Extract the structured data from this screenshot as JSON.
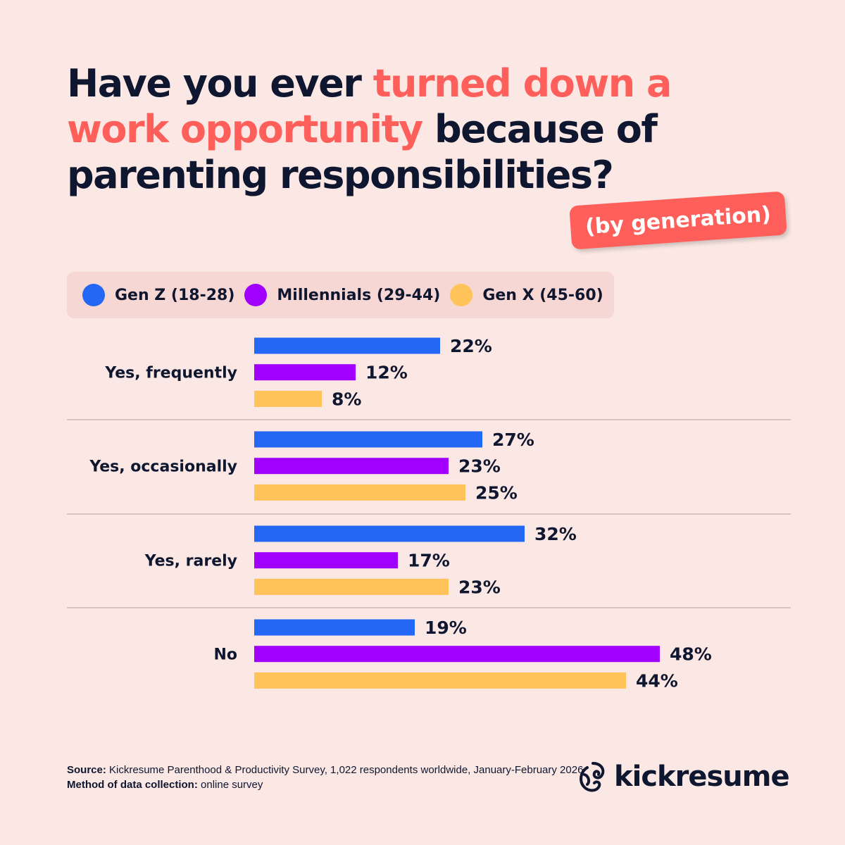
{
  "title": {
    "part1": "Have you ever ",
    "highlight": "turned down a work opportunity",
    "part2": " because of parenting responsibilities?"
  },
  "badge": "(by generation)",
  "colors": {
    "background": "#fbe8e4",
    "text": "#0f1630",
    "accent": "#ff5f5a"
  },
  "chart_data": {
    "type": "bar",
    "orientation": "horizontal",
    "categories": [
      "Yes, frequently",
      "Yes, occasionally",
      "Yes, rarely",
      "No"
    ],
    "series": [
      {
        "name": "Gen Z (18-28)",
        "color": "#2467f5",
        "values": [
          22,
          27,
          32,
          19
        ]
      },
      {
        "name": "Millennials (29-44)",
        "color": "#a100ff",
        "values": [
          12,
          23,
          17,
          48
        ]
      },
      {
        "name": "Gen X (45-60)",
        "color": "#ffc35a",
        "values": [
          8,
          25,
          23,
          44
        ]
      }
    ],
    "value_suffix": "%",
    "legend_position": "top",
    "grid": false
  },
  "footer": {
    "source_label": "Source:",
    "source_text": " Kickresume Parenthood & Productivity Survey, 1,022 respondents worldwide, January-February 2026",
    "method_label": "Method of data collection:",
    "method_text": " online survey"
  },
  "logo": "kickresume"
}
